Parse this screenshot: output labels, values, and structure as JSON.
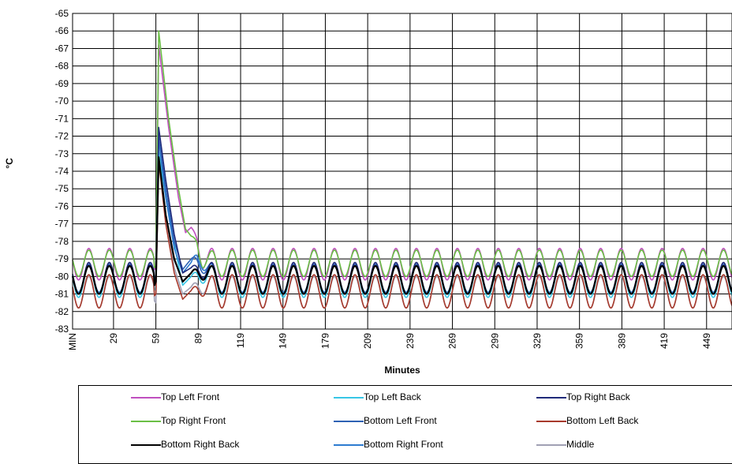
{
  "chart_data": {
    "type": "line",
    "title": "",
    "xlabel": "Minutes",
    "ylabel": "°C",
    "ylim": [
      -83,
      -65
    ],
    "xlim": [
      0,
      467
    ],
    "x_ticks": [
      "MIN",
      "29",
      "59",
      "89",
      "119",
      "149",
      "179",
      "209",
      "239",
      "269",
      "299",
      "329",
      "359",
      "389",
      "419",
      "449"
    ],
    "y_ticks": [
      "-65",
      "-66",
      "-67",
      "-68",
      "-69",
      "-70",
      "-71",
      "-72",
      "-73",
      "-74",
      "-75",
      "-76",
      "-77",
      "-78",
      "-79",
      "-80",
      "-81",
      "-82",
      "-83"
    ],
    "grid": true,
    "legend_position": "bottom",
    "cycle_period_minutes": 14.5,
    "series": [
      {
        "name": "Top Left Front",
        "color": "#c04fbf",
        "cycle_min": -80.2,
        "cycle_max": -78.4,
        "points": [
          [
            0,
            -79.8
          ],
          [
            58,
            -79.6
          ],
          [
            59,
            -79.5
          ],
          [
            61,
            -66.8
          ],
          [
            68,
            -71.5
          ],
          [
            75,
            -75.5
          ],
          [
            80,
            -77.5
          ],
          [
            84,
            -77.2
          ],
          [
            88,
            -77.3
          ],
          [
            92,
            -79.0
          ],
          [
            96,
            -78.6
          ],
          [
            100,
            -78.2
          ],
          [
            105,
            -79.4
          ],
          [
            467,
            -79.2
          ]
        ]
      },
      {
        "name": "Top Left Back",
        "color": "#38c6e6",
        "cycle_min": -81.2,
        "cycle_max": -79.4,
        "points": [
          [
            0,
            -80.9
          ],
          [
            58,
            -80.8
          ],
          [
            59,
            -80.6
          ],
          [
            61,
            -72.9
          ],
          [
            66,
            -75.5
          ],
          [
            72,
            -78.2
          ],
          [
            78,
            -80.5
          ],
          [
            84,
            -80.0
          ],
          [
            88,
            -79.6
          ],
          [
            467,
            -80.3
          ]
        ]
      },
      {
        "name": "Top Right Back",
        "color": "#1f2a7a",
        "cycle_min": -81.0,
        "cycle_max": -79.2,
        "points": [
          [
            0,
            -80.6
          ],
          [
            58,
            -80.5
          ],
          [
            59,
            -80.3
          ],
          [
            61,
            -71.5
          ],
          [
            66,
            -74.5
          ],
          [
            72,
            -77.6
          ],
          [
            78,
            -79.8
          ],
          [
            84,
            -79.5
          ],
          [
            88,
            -79.2
          ],
          [
            467,
            -80.1
          ]
        ]
      },
      {
        "name": "Top Right Front",
        "color": "#6abf45",
        "cycle_min": -80.0,
        "cycle_max": -78.5,
        "points": [
          [
            0,
            -79.8
          ],
          [
            58,
            -79.5
          ],
          [
            59,
            -79.4
          ],
          [
            61,
            -66.0
          ],
          [
            68,
            -71.0
          ],
          [
            75,
            -75.0
          ],
          [
            80,
            -77.3
          ],
          [
            84,
            -77.7
          ],
          [
            88,
            -77.6
          ],
          [
            92,
            -79.1
          ],
          [
            96,
            -78.9
          ],
          [
            467,
            -79.3
          ]
        ]
      },
      {
        "name": "Bottom Left Front",
        "color": "#2e62b4",
        "cycle_min": -81.0,
        "cycle_max": -79.3,
        "points": [
          [
            0,
            -80.4
          ],
          [
            58,
            -80.3
          ],
          [
            59,
            -80.1
          ],
          [
            61,
            -72.0
          ],
          [
            66,
            -75.0
          ],
          [
            72,
            -78.0
          ],
          [
            78,
            -79.6
          ],
          [
            84,
            -79.0
          ],
          [
            88,
            -78.6
          ],
          [
            467,
            -80.0
          ]
        ]
      },
      {
        "name": "Bottom Left Back",
        "color": "#a83a2c",
        "cycle_min": -81.8,
        "cycle_max": -79.9,
        "points": [
          [
            0,
            -81.3
          ],
          [
            58,
            -81.1
          ],
          [
            59,
            -81.0
          ],
          [
            61,
            -73.4
          ],
          [
            66,
            -77.0
          ],
          [
            72,
            -79.8
          ],
          [
            78,
            -81.3
          ],
          [
            84,
            -80.8
          ],
          [
            88,
            -80.5
          ],
          [
            467,
            -81.0
          ]
        ]
      },
      {
        "name": "Bottom Right Back",
        "color": "#000000",
        "cycle_min": -81.0,
        "cycle_max": -79.4,
        "points": [
          [
            0,
            -80.6
          ],
          [
            58,
            -80.5
          ],
          [
            59,
            -80.3
          ],
          [
            61,
            -73.2
          ],
          [
            66,
            -76.5
          ],
          [
            72,
            -79.0
          ],
          [
            78,
            -80.3
          ],
          [
            84,
            -79.8
          ],
          [
            88,
            -79.4
          ],
          [
            467,
            -80.2
          ]
        ]
      },
      {
        "name": "Bottom Right Front",
        "color": "#2d7bd0",
        "cycle_min": -80.9,
        "cycle_max": -79.4,
        "points": [
          [
            0,
            -80.2
          ],
          [
            58,
            -80.1
          ],
          [
            59,
            -80.0
          ],
          [
            61,
            -72.2
          ],
          [
            66,
            -75.5
          ],
          [
            72,
            -78.4
          ],
          [
            78,
            -79.8
          ],
          [
            84,
            -79.2
          ],
          [
            88,
            -78.3
          ],
          [
            467,
            -79.9
          ]
        ]
      },
      {
        "name": "Middle",
        "color": "#a0a0b4",
        "cycle_min": -81.8,
        "cycle_max": -80.0,
        "points": [
          [
            0,
            -81.2
          ],
          [
            58,
            -81.4
          ],
          [
            59,
            -81.5
          ],
          [
            61,
            -72.8
          ],
          [
            66,
            -76.5
          ],
          [
            72,
            -79.5
          ],
          [
            78,
            -81.0
          ],
          [
            84,
            -80.6
          ],
          [
            88,
            -80.2
          ],
          [
            467,
            -81.1
          ]
        ]
      }
    ]
  }
}
